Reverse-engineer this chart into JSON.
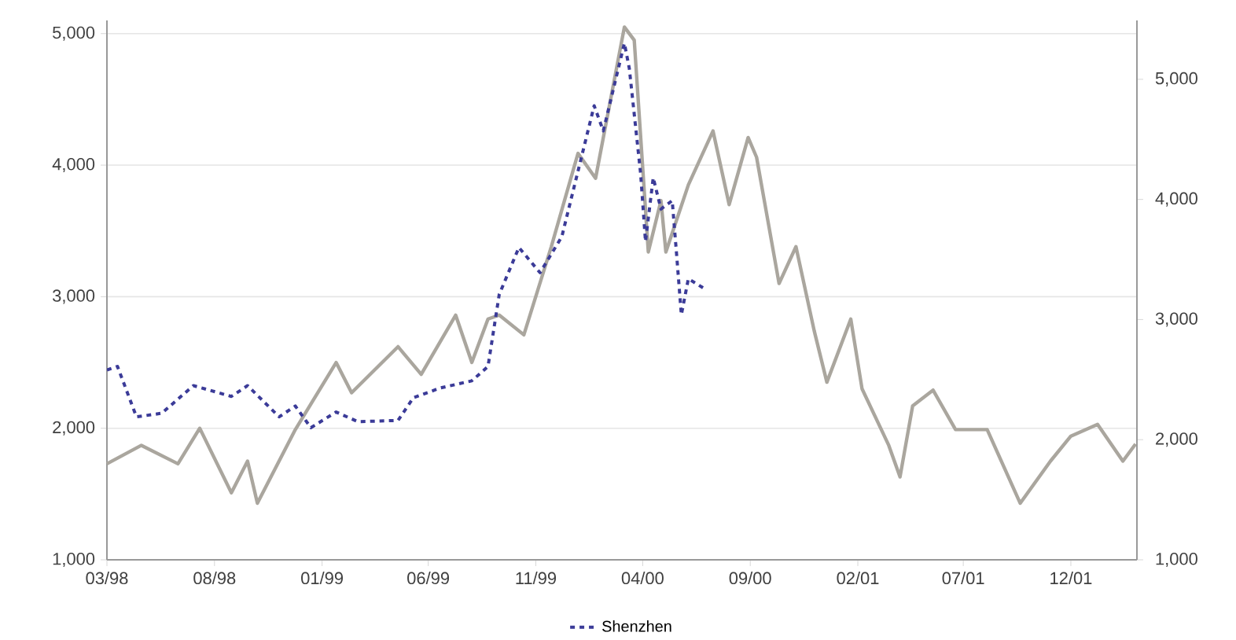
{
  "chart_data": {
    "type": "line",
    "xlim": [
      "1998-03-01",
      "2002-03-05"
    ],
    "xticks": [
      {
        "value": "1998-03-01",
        "label": "03/98"
      },
      {
        "value": "1998-08-01",
        "label": "08/98"
      },
      {
        "value": "1999-01-01",
        "label": "01/99"
      },
      {
        "value": "1999-06-01",
        "label": "06/99"
      },
      {
        "value": "1999-11-01",
        "label": "11/99"
      },
      {
        "value": "2000-04-01",
        "label": "04/00"
      },
      {
        "value": "2000-09-01",
        "label": "09/00"
      },
      {
        "value": "2001-02-01",
        "label": "02/01"
      },
      {
        "value": "2001-07-01",
        "label": "07/01"
      },
      {
        "value": "2001-12-01",
        "label": "12/01"
      }
    ],
    "ylim": [
      1000,
      5100
    ],
    "yticks": [
      {
        "value": 1000,
        "label": "1,000"
      },
      {
        "value": 2000,
        "label": "2,000"
      },
      {
        "value": 3000,
        "label": "3,000"
      },
      {
        "value": 4000,
        "label": "4,000"
      },
      {
        "value": 5000,
        "label": "5,000"
      }
    ],
    "y2lim": [
      1000,
      5490
    ],
    "y2ticks": [
      {
        "value": 1000,
        "label": "1,000"
      },
      {
        "value": 2000,
        "label": "2,000"
      },
      {
        "value": 3000,
        "label": "3,000"
      },
      {
        "value": 4000,
        "label": "4,000"
      },
      {
        "value": 5000,
        "label": "5,000"
      }
    ],
    "grid": "y",
    "legend": "bottom",
    "marker": "none",
    "series": [
      {
        "color": "#aaa69e",
        "line_style": "solid",
        "x": [
          "1998-03-01",
          "1998-04-19",
          "1998-06-10",
          "1998-07-11",
          "1998-08-25",
          "1998-09-17",
          "1998-10-01",
          "1998-11-24",
          "1999-01-21",
          "1999-02-12",
          "1999-04-19",
          "1999-05-22",
          "1999-07-10",
          "1999-08-02",
          "1999-08-25",
          "1999-09-10",
          "1999-10-15",
          "1999-11-23",
          "1999-12-31",
          "2000-01-25",
          "2000-03-06",
          "2000-03-20",
          "2000-04-09",
          "2000-04-27",
          "2000-05-04",
          "2000-06-05",
          "2000-07-10",
          "2000-08-02",
          "2000-08-29",
          "2000-09-10",
          "2000-10-12",
          "2000-11-05",
          "2000-12-01",
          "2000-12-19",
          "2001-01-22",
          "2001-02-07",
          "2001-03-17",
          "2001-04-02",
          "2001-04-20",
          "2001-05-19",
          "2001-06-20",
          "2001-08-04",
          "2001-09-20",
          "2001-11-02",
          "2001-12-01",
          "2002-01-08",
          "2002-02-13",
          "2002-03-03"
        ],
        "values": [
          1730,
          1870,
          1730,
          2000,
          1510,
          1750,
          1430,
          1990,
          2500,
          2270,
          2620,
          2410,
          2860,
          2500,
          2830,
          2860,
          2710,
          3380,
          4090,
          3900,
          5050,
          4950,
          3340,
          3730,
          3340,
          3850,
          4260,
          3700,
          4210,
          4060,
          3100,
          3380,
          2740,
          2350,
          2830,
          2300,
          1870,
          1630,
          2170,
          2290,
          1990,
          1990,
          1430,
          1750,
          1940,
          2030,
          1750,
          1880
        ]
      },
      {
        "name": "Shenzhen",
        "color": "#3b3b98",
        "line_style": "dashed",
        "axis": "y2",
        "x": [
          "1998-03-01",
          "1998-03-16",
          "1998-04-12",
          "1998-05-18",
          "1998-07-02",
          "1998-08-25",
          "1998-09-17",
          "1998-11-01",
          "1998-11-24",
          "1998-12-16",
          "1999-01-21",
          "1999-02-21",
          "1999-04-19",
          "1999-05-11",
          "1999-06-18",
          "1999-08-02",
          "1999-08-25",
          "1999-09-10",
          "1999-10-08",
          "1999-11-07",
          "1999-12-08",
          "2000-01-23",
          "2000-02-05",
          "2000-03-06",
          "2000-03-13",
          "2000-03-29",
          "2000-04-05",
          "2000-04-16",
          "2000-04-27",
          "2000-05-13",
          "2000-05-19",
          "2000-05-26",
          "2000-06-05",
          "2000-06-27"
        ],
        "values": [
          2580,
          2610,
          2190,
          2220,
          2450,
          2360,
          2450,
          2190,
          2280,
          2100,
          2230,
          2150,
          2160,
          2350,
          2430,
          2490,
          2610,
          3210,
          3600,
          3390,
          3690,
          4780,
          4570,
          5300,
          5090,
          4220,
          3650,
          4180,
          3920,
          3990,
          3560,
          3040,
          3340,
          3260
        ]
      }
    ]
  }
}
